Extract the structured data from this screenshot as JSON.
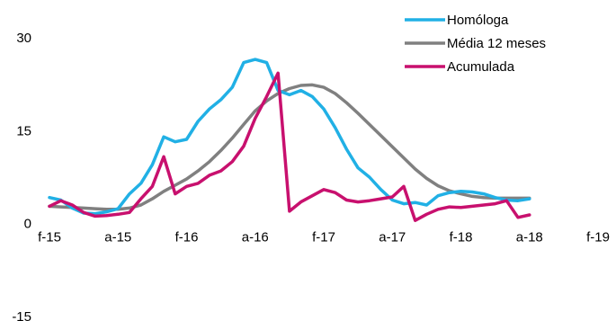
{
  "chart_data": {
    "type": "line",
    "title": "",
    "xlabel": "",
    "ylabel": "",
    "ylim": [
      -15,
      30
    ],
    "xlim": [
      "2015-02",
      "2019-02"
    ],
    "y_ticks": [
      {
        "value": 30,
        "label": "30"
      },
      {
        "value": 15,
        "label": "15"
      },
      {
        "value": 0,
        "label": "0"
      },
      {
        "value": -15,
        "label": "-15"
      }
    ],
    "x_ticks": [
      {
        "x": "2015-02",
        "label": "f-15"
      },
      {
        "x": "2015-08",
        "label": "a-15"
      },
      {
        "x": "2016-02",
        "label": "f-16"
      },
      {
        "x": "2016-08",
        "label": "a-16"
      },
      {
        "x": "2017-02",
        "label": "f-17"
      },
      {
        "x": "2017-08",
        "label": "a-17"
      },
      {
        "x": "2018-02",
        "label": "f-18"
      },
      {
        "x": "2018-08",
        "label": "a-18"
      },
      {
        "x": "2019-02",
        "label": "f-19"
      }
    ],
    "grid": false,
    "legend": {
      "position": "top-right"
    },
    "series": [
      {
        "name": "Homóloga",
        "color": "#21b0e5",
        "points": [
          [
            "2015-02",
            4.2
          ],
          [
            "2015-03",
            3.8
          ],
          [
            "2015-04",
            2.5
          ],
          [
            "2015-05",
            1.7
          ],
          [
            "2015-06",
            1.6
          ],
          [
            "2015-07",
            1.9
          ],
          [
            "2015-08",
            2.4
          ],
          [
            "2015-09",
            4.8
          ],
          [
            "2015-10",
            6.5
          ],
          [
            "2015-11",
            9.5
          ],
          [
            "2015-12",
            14.0
          ],
          [
            "2016-01",
            13.2
          ],
          [
            "2016-02",
            13.6
          ],
          [
            "2016-03",
            16.5
          ],
          [
            "2016-04",
            18.5
          ],
          [
            "2016-05",
            20.0
          ],
          [
            "2016-06",
            22.0
          ],
          [
            "2016-07",
            26.0
          ],
          [
            "2016-08",
            26.5
          ],
          [
            "2016-09",
            26.0
          ],
          [
            "2016-10",
            21.5
          ],
          [
            "2016-11",
            20.8
          ],
          [
            "2016-12",
            21.5
          ],
          [
            "2017-01",
            20.5
          ],
          [
            "2017-02",
            18.5
          ],
          [
            "2017-03",
            15.5
          ],
          [
            "2017-04",
            12.0
          ],
          [
            "2017-05",
            9.0
          ],
          [
            "2017-06",
            7.5
          ],
          [
            "2017-07",
            5.5
          ],
          [
            "2017-08",
            3.8
          ],
          [
            "2017-09",
            3.2
          ],
          [
            "2017-10",
            3.4
          ],
          [
            "2017-11",
            3.0
          ],
          [
            "2017-12",
            4.5
          ],
          [
            "2018-01",
            5.0
          ],
          [
            "2018-02",
            5.2
          ],
          [
            "2018-03",
            5.1
          ],
          [
            "2018-04",
            4.8
          ],
          [
            "2018-05",
            4.2
          ],
          [
            "2018-06",
            3.8
          ],
          [
            "2018-07",
            3.7
          ],
          [
            "2018-08",
            4.0
          ]
        ]
      },
      {
        "name": "Média 12 meses",
        "color": "#808080",
        "points": [
          [
            "2015-02",
            2.8
          ],
          [
            "2015-03",
            2.7
          ],
          [
            "2015-04",
            2.6
          ],
          [
            "2015-05",
            2.5
          ],
          [
            "2015-06",
            2.4
          ],
          [
            "2015-07",
            2.3
          ],
          [
            "2015-08",
            2.3
          ],
          [
            "2015-09",
            2.5
          ],
          [
            "2015-10",
            3.0
          ],
          [
            "2015-11",
            4.0
          ],
          [
            "2015-12",
            5.2
          ],
          [
            "2016-01",
            6.2
          ],
          [
            "2016-02",
            7.2
          ],
          [
            "2016-03",
            8.5
          ],
          [
            "2016-04",
            10.0
          ],
          [
            "2016-05",
            11.8
          ],
          [
            "2016-06",
            13.8
          ],
          [
            "2016-07",
            16.0
          ],
          [
            "2016-08",
            18.2
          ],
          [
            "2016-09",
            19.8
          ],
          [
            "2016-10",
            21.0
          ],
          [
            "2016-11",
            21.8
          ],
          [
            "2016-12",
            22.3
          ],
          [
            "2017-01",
            22.4
          ],
          [
            "2017-02",
            22.0
          ],
          [
            "2017-03",
            21.0
          ],
          [
            "2017-04",
            19.5
          ],
          [
            "2017-05",
            17.8
          ],
          [
            "2017-06",
            16.0
          ],
          [
            "2017-07",
            14.2
          ],
          [
            "2017-08",
            12.4
          ],
          [
            "2017-09",
            10.6
          ],
          [
            "2017-10",
            8.8
          ],
          [
            "2017-11",
            7.3
          ],
          [
            "2017-12",
            6.1
          ],
          [
            "2018-01",
            5.3
          ],
          [
            "2018-02",
            4.8
          ],
          [
            "2018-03",
            4.4
          ],
          [
            "2018-04",
            4.2
          ],
          [
            "2018-05",
            4.1
          ],
          [
            "2018-06",
            4.1
          ],
          [
            "2018-07",
            4.1
          ],
          [
            "2018-08",
            4.1
          ]
        ]
      },
      {
        "name": "Acumulada",
        "color": "#c8106e",
        "points": [
          [
            "2015-02",
            2.8
          ],
          [
            "2015-03",
            3.7
          ],
          [
            "2015-04",
            3.0
          ],
          [
            "2015-05",
            1.8
          ],
          [
            "2015-06",
            1.2
          ],
          [
            "2015-07",
            1.3
          ],
          [
            "2015-08",
            1.5
          ],
          [
            "2015-09",
            1.8
          ],
          [
            "2015-10",
            4.0
          ],
          [
            "2015-11",
            6.0
          ],
          [
            "2015-12",
            10.8
          ],
          [
            "2016-01",
            4.8
          ],
          [
            "2016-02",
            6.0
          ],
          [
            "2016-03",
            6.5
          ],
          [
            "2016-04",
            7.8
          ],
          [
            "2016-05",
            8.5
          ],
          [
            "2016-06",
            10.0
          ],
          [
            "2016-07",
            12.5
          ],
          [
            "2016-08",
            17.0
          ],
          [
            "2016-09",
            20.5
          ],
          [
            "2016-10",
            24.3
          ],
          [
            "2016-11",
            2.0
          ],
          [
            "2016-12",
            3.5
          ],
          [
            "2017-01",
            4.5
          ],
          [
            "2017-02",
            5.5
          ],
          [
            "2017-03",
            5.0
          ],
          [
            "2017-04",
            3.8
          ],
          [
            "2017-05",
            3.5
          ],
          [
            "2017-06",
            3.7
          ],
          [
            "2017-07",
            4.0
          ],
          [
            "2017-08",
            4.3
          ],
          [
            "2017-09",
            6.0
          ],
          [
            "2017-10",
            0.5
          ],
          [
            "2017-11",
            1.5
          ],
          [
            "2017-12",
            2.3
          ],
          [
            "2018-01",
            2.7
          ],
          [
            "2018-02",
            2.6
          ],
          [
            "2018-03",
            2.8
          ],
          [
            "2018-04",
            3.0
          ],
          [
            "2018-05",
            3.2
          ],
          [
            "2018-06",
            3.7
          ],
          [
            "2018-07",
            1.0
          ],
          [
            "2018-08",
            1.4
          ]
        ]
      }
    ]
  }
}
